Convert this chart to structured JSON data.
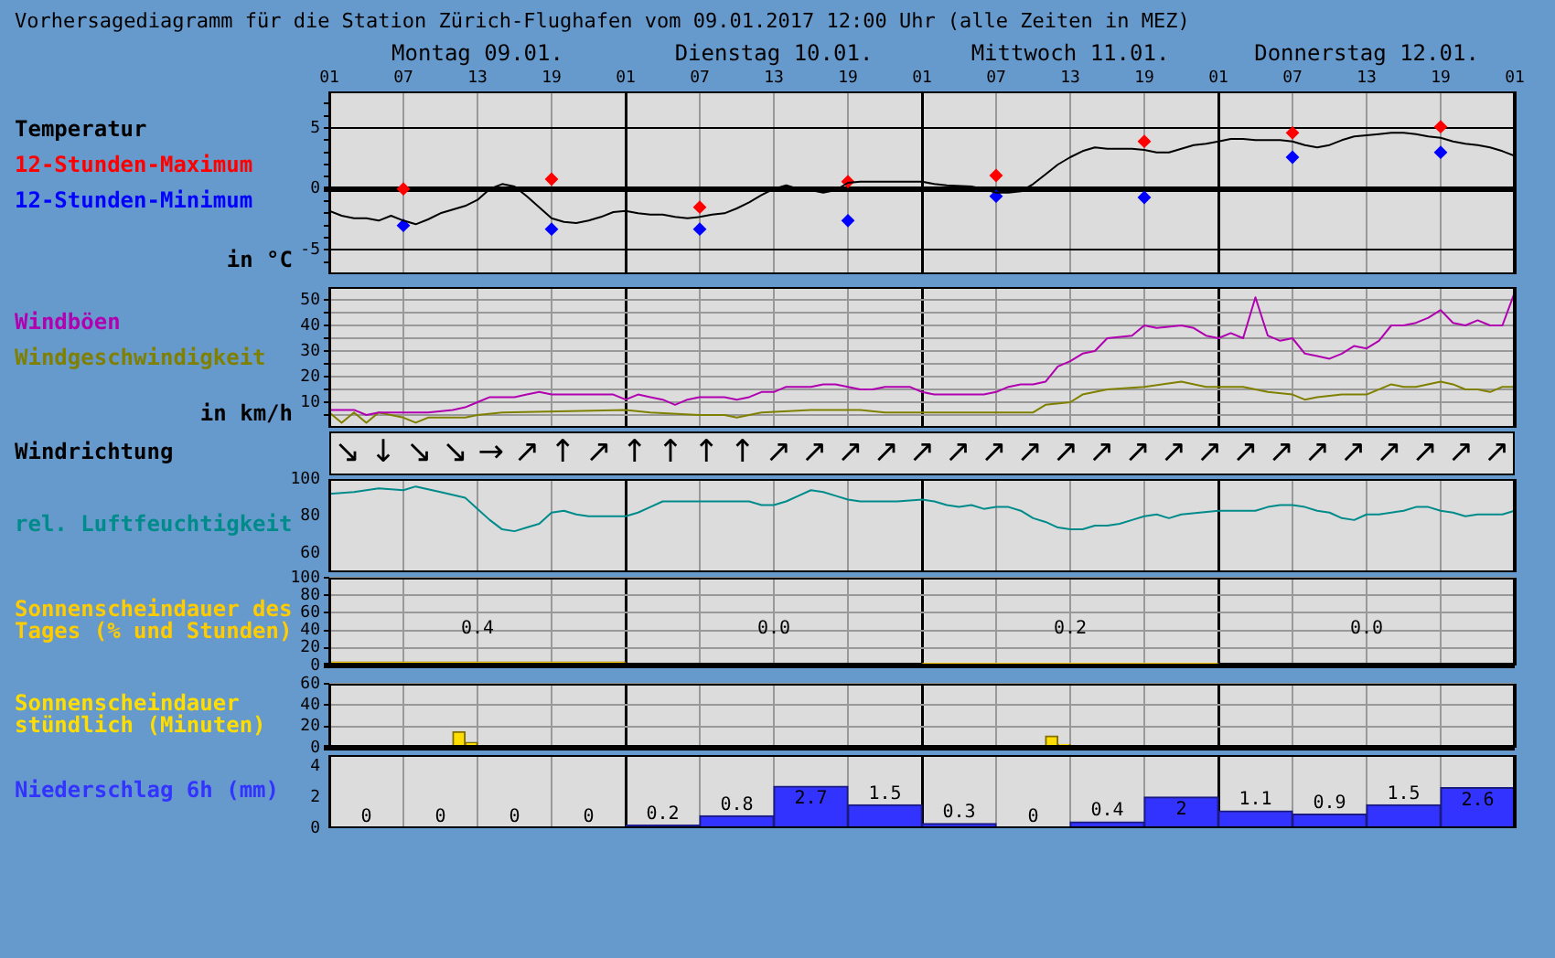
{
  "chart_data": [
    {
      "type": "line",
      "title": "Vorhersagediagramm für die Station Zürich-Flughafen vom 09.01.2017 12:00 Uhr (alle Zeiten in MEZ)",
      "ylabel": "in °C",
      "legend": "left",
      "grid": true,
      "xlim": [
        "2017-01-09T01:00",
        "2017-01-13T01:00"
      ],
      "xticks": [
        {
          "value": "2017-01-09T01:00",
          "label": "01"
        },
        {
          "value": "2017-01-09T07:00",
          "label": "07"
        },
        {
          "value": "2017-01-09T13:00",
          "label": "13"
        },
        {
          "value": "2017-01-09T19:00",
          "label": "19"
        },
        {
          "value": "2017-01-10T01:00",
          "label": "01"
        },
        {
          "value": "2017-01-10T07:00",
          "label": "07"
        },
        {
          "value": "2017-01-10T13:00",
          "label": "13"
        },
        {
          "value": "2017-01-10T19:00",
          "label": "19"
        },
        {
          "value": "2017-01-11T01:00",
          "label": "01"
        },
        {
          "value": "2017-01-11T07:00",
          "label": "07"
        },
        {
          "value": "2017-01-11T13:00",
          "label": "13"
        },
        {
          "value": "2017-01-11T19:00",
          "label": "19"
        },
        {
          "value": "2017-01-12T01:00",
          "label": "01"
        },
        {
          "value": "2017-01-12T07:00",
          "label": "07"
        },
        {
          "value": "2017-01-12T13:00",
          "label": "13"
        },
        {
          "value": "2017-01-12T19:00",
          "label": "19"
        },
        {
          "value": "2017-01-13T01:00",
          "label": "01"
        }
      ],
      "x2lim": [
        "2017-01-09T01:00",
        "2017-01-13T01:00"
      ],
      "x2ticks": [
        {
          "value": "2017-01-09T13:00",
          "label": "Montag 09.01."
        },
        {
          "value": "2017-01-10T13:00",
          "label": "Dienstag 10.01."
        },
        {
          "value": "2017-01-11T13:00",
          "label": "Mittwoch 11.01."
        },
        {
          "value": "2017-01-12T13:00",
          "label": "Donnerstag 12.01."
        }
      ],
      "ylim": [
        -7,
        8
      ],
      "yticks": [
        {
          "value": -6,
          "label": null
        },
        -5,
        {
          "value": -4,
          "label": null
        },
        {
          "value": -3,
          "label": null
        },
        {
          "value": -2,
          "label": null
        },
        {
          "value": -1,
          "label": null
        },
        0,
        {
          "value": 1,
          "label": null
        },
        {
          "value": 2,
          "label": null
        },
        {
          "value": 3,
          "label": null
        },
        {
          "value": 4,
          "label": null
        },
        5,
        {
          "value": 6,
          "label": null
        },
        {
          "value": 7,
          "label": null
        }
      ],
      "series": [
        {
          "name": "Temperatur",
          "type": "line",
          "color": "#000000",
          "marker": "none",
          "x": [
            "2017-01-09T01:00",
            "2017-01-09T02:00",
            "2017-01-09T03:00",
            "2017-01-09T04:00",
            "2017-01-09T05:00",
            "2017-01-09T06:00",
            "2017-01-09T07:00",
            "2017-01-09T08:00",
            "2017-01-09T09:00",
            "2017-01-09T10:00",
            "2017-01-09T11:00",
            "2017-01-09T12:00",
            "2017-01-09T13:00",
            "2017-01-09T14:00",
            "2017-01-09T15:00",
            "2017-01-09T16:00",
            "2017-01-09T17:00",
            "2017-01-09T18:00",
            "2017-01-09T19:00",
            "2017-01-09T20:00",
            "2017-01-09T21:00",
            "2017-01-09T22:00",
            "2017-01-09T23:00",
            "2017-01-10T00:00",
            "2017-01-10T01:00",
            "2017-01-10T02:00",
            "2017-01-10T03:00",
            "2017-01-10T04:00",
            "2017-01-10T05:00",
            "2017-01-10T06:00",
            "2017-01-10T07:00",
            "2017-01-10T08:00",
            "2017-01-10T09:00",
            "2017-01-10T10:00",
            "2017-01-10T11:00",
            "2017-01-10T12:00",
            "2017-01-10T13:00",
            "2017-01-10T14:00",
            "2017-01-10T15:00",
            "2017-01-10T16:00",
            "2017-01-10T17:00",
            "2017-01-10T18:00",
            "2017-01-10T19:00",
            "2017-01-10T20:00",
            "2017-01-10T22:00",
            "2017-01-11T00:00",
            "2017-01-11T01:00",
            "2017-01-11T02:00",
            "2017-01-11T03:00",
            "2017-01-11T05:00",
            "2017-01-11T06:00",
            "2017-01-11T07:00",
            "2017-01-11T08:00",
            "2017-01-11T09:00",
            "2017-01-11T10:00",
            "2017-01-11T11:00",
            "2017-01-11T12:00",
            "2017-01-11T13:00",
            "2017-01-11T14:00",
            "2017-01-11T15:00",
            "2017-01-11T16:00",
            "2017-01-11T18:00",
            "2017-01-11T19:00",
            "2017-01-11T20:00",
            "2017-01-11T21:00",
            "2017-01-11T22:00",
            "2017-01-11T23:00",
            "2017-01-12T00:00",
            "2017-01-12T01:00",
            "2017-01-12T02:00",
            "2017-01-12T03:00",
            "2017-01-12T04:00",
            "2017-01-12T06:00",
            "2017-01-12T07:00",
            "2017-01-12T08:00",
            "2017-01-12T09:00",
            "2017-01-12T10:00",
            "2017-01-12T11:00",
            "2017-01-12T12:00",
            "2017-01-12T13:00",
            "2017-01-12T14:00",
            "2017-01-12T15:00",
            "2017-01-12T16:00",
            "2017-01-12T17:00",
            "2017-01-12T18:00",
            "2017-01-12T19:00",
            "2017-01-12T20:00",
            "2017-01-12T21:00",
            "2017-01-12T22:00",
            "2017-01-12T23:00",
            "2017-01-13T00:00",
            "2017-01-13T01:00"
          ],
          "values": [
            -1.8,
            -2.2,
            -2.4,
            -2.4,
            -2.6,
            -2.2,
            -2.6,
            -2.9,
            -2.5,
            -2.0,
            -1.7,
            -1.4,
            -0.9,
            0,
            0.4,
            0.2,
            -0.6,
            -1.5,
            -2.4,
            -2.7,
            -2.8,
            -2.6,
            -2.3,
            -1.9,
            -1.8,
            -2.0,
            -2.1,
            -2.1,
            -2.3,
            -2.4,
            -2.3,
            -2.1,
            -2.0,
            -1.6,
            -1.1,
            -0.5,
            0,
            0.3,
            0,
            -0.1,
            -0.3,
            -0.1,
            0.5,
            0.6,
            0.6,
            0.6,
            0.6,
            0.4,
            0.3,
            0.2,
            0,
            -0.3,
            -0.3,
            -0.2,
            0.4,
            1.2,
            2.0,
            2.6,
            3.1,
            3.4,
            3.3,
            3.3,
            3.2,
            3.0,
            3.0,
            3.3,
            3.6,
            3.7,
            3.9,
            4.1,
            4.1,
            4.0,
            4.0,
            3.9,
            3.6,
            3.4,
            3.6,
            4.0,
            4.3,
            4.4,
            4.5,
            4.6,
            4.6,
            4.5,
            4.3,
            4.2,
            3.9,
            3.7,
            3.6,
            3.4,
            3.1,
            2.7
          ]
        },
        {
          "name": "12-Stunden-Maximum",
          "type": "scatter",
          "color": "#ff0000",
          "marker": "diamond",
          "x": [
            "2017-01-09T07:00",
            "2017-01-09T19:00",
            "2017-01-10T07:00",
            "2017-01-10T19:00",
            "2017-01-11T07:00",
            "2017-01-11T19:00",
            "2017-01-12T07:00",
            "2017-01-12T19:00"
          ],
          "values": [
            0,
            0.8,
            -1.5,
            0.6,
            1.1,
            3.9,
            4.6,
            5.1
          ]
        },
        {
          "name": "12-Stunden-Minimum",
          "type": "scatter",
          "color": "#0000ff",
          "marker": "diamond",
          "x": [
            "2017-01-09T07:00",
            "2017-01-09T19:00",
            "2017-01-10T07:00",
            "2017-01-10T19:00",
            "2017-01-11T07:00",
            "2017-01-11T19:00",
            "2017-01-12T07:00",
            "2017-01-12T19:00"
          ],
          "values": [
            -3.0,
            -3.3,
            -3.3,
            -2.6,
            -0.6,
            -0.7,
            2.6,
            3.0
          ]
        }
      ]
    },
    {
      "type": "line",
      "ylabel": "in km/h",
      "legend": "left",
      "grid": true,
      "tick_labels": "y",
      "xlim": [
        "2017-01-09T01:00",
        "2017-01-13T01:00"
      ],
      "xticks": [
        {
          "value": "2017-01-09T01:00",
          "label": null
        },
        {
          "value": "2017-01-09T07:00",
          "label": null
        },
        {
          "value": "2017-01-09T13:00",
          "label": null
        },
        {
          "value": "2017-01-09T19:00",
          "label": null
        },
        {
          "value": "2017-01-10T01:00",
          "label": null
        },
        {
          "value": "2017-01-10T07:00",
          "label": null
        },
        {
          "value": "2017-01-10T13:00",
          "label": null
        },
        {
          "value": "2017-01-10T19:00",
          "label": null
        },
        {
          "value": "2017-01-11T01:00",
          "label": null
        },
        {
          "value": "2017-01-11T07:00",
          "label": null
        },
        {
          "value": "2017-01-11T13:00",
          "label": null
        },
        {
          "value": "2017-01-11T19:00",
          "label": null
        },
        {
          "value": "2017-01-12T01:00",
          "label": null
        },
        {
          "value": "2017-01-12T07:00",
          "label": null
        },
        {
          "value": "2017-01-12T13:00",
          "label": null
        },
        {
          "value": "2017-01-12T19:00",
          "label": null
        },
        {
          "value": "2017-01-13T01:00",
          "label": null
        }
      ],
      "ylim": [
        0,
        55
      ],
      "yticks": [
        {
          "value": 5,
          "label": null
        },
        10,
        {
          "value": 15,
          "label": null
        },
        20,
        {
          "value": 25,
          "label": null
        },
        30,
        {
          "value": 35,
          "label": null
        },
        40,
        {
          "value": 45,
          "label": null
        },
        50
      ],
      "series": [
        {
          "name": "Windböen",
          "color": "#b000b0",
          "marker": "none",
          "x": [
            "2017-01-09T01:00",
            "2017-01-09T03:00",
            "2017-01-09T04:00",
            "2017-01-09T05:00",
            "2017-01-09T07:00",
            "2017-01-09T09:00",
            "2017-01-09T11:00",
            "2017-01-09T12:00",
            "2017-01-09T13:00",
            "2017-01-09T14:00",
            "2017-01-09T15:00",
            "2017-01-09T16:00",
            "2017-01-09T17:00",
            "2017-01-09T18:00",
            "2017-01-09T19:00",
            "2017-01-09T20:00",
            "2017-01-09T22:00",
            "2017-01-09T23:00",
            "2017-01-10T00:00",
            "2017-01-10T01:00",
            "2017-01-10T02:00",
            "2017-01-10T03:00",
            "2017-01-10T04:00",
            "2017-01-10T05:00",
            "2017-01-10T06:00",
            "2017-01-10T07:00",
            "2017-01-10T09:00",
            "2017-01-10T10:00",
            "2017-01-10T11:00",
            "2017-01-10T12:00",
            "2017-01-10T13:00",
            "2017-01-10T14:00",
            "2017-01-10T15:00",
            "2017-01-10T16:00",
            "2017-01-10T17:00",
            "2017-01-10T18:00",
            "2017-01-10T19:00",
            "2017-01-10T20:00",
            "2017-01-10T21:00",
            "2017-01-10T22:00",
            "2017-01-10T23:00",
            "2017-01-11T00:00",
            "2017-01-11T01:00",
            "2017-01-11T02:00",
            "2017-01-11T04:00",
            "2017-01-11T06:00",
            "2017-01-11T07:00",
            "2017-01-11T08:00",
            "2017-01-11T09:00",
            "2017-01-11T10:00",
            "2017-01-11T11:00",
            "2017-01-11T12:00",
            "2017-01-11T13:00",
            "2017-01-11T14:00",
            "2017-01-11T15:00",
            "2017-01-11T16:00",
            "2017-01-11T18:00",
            "2017-01-11T19:00",
            "2017-01-11T20:00",
            "2017-01-11T22:00",
            "2017-01-11T23:00",
            "2017-01-12T00:00",
            "2017-01-12T01:00",
            "2017-01-12T02:00",
            "2017-01-12T03:00",
            "2017-01-12T04:00",
            "2017-01-12T05:00",
            "2017-01-12T06:00",
            "2017-01-12T07:00",
            "2017-01-12T08:00",
            "2017-01-12T09:00",
            "2017-01-12T10:00",
            "2017-01-12T11:00",
            "2017-01-12T12:00",
            "2017-01-12T13:00",
            "2017-01-12T14:00",
            "2017-01-12T15:00",
            "2017-01-12T16:00",
            "2017-01-12T17:00",
            "2017-01-12T18:00",
            "2017-01-12T19:00",
            "2017-01-12T20:00",
            "2017-01-12T21:00",
            "2017-01-12T22:00",
            "2017-01-12T23:00",
            "2017-01-13T00:00",
            "2017-01-13T01:00"
          ],
          "values": [
            7,
            7,
            5,
            6,
            6,
            6,
            7,
            8,
            10,
            12,
            12,
            12,
            13,
            14,
            13,
            13,
            13,
            13,
            13,
            11,
            13,
            12,
            11,
            9,
            11,
            12,
            12,
            11,
            12,
            14,
            14,
            16,
            16,
            16,
            17,
            17,
            16,
            15,
            15,
            16,
            16,
            16,
            14,
            13,
            13,
            13,
            14,
            16,
            17,
            17,
            18,
            24,
            26,
            29,
            30,
            35,
            36,
            40,
            39,
            40,
            39,
            36,
            35,
            37,
            35,
            51,
            36,
            34,
            35,
            29,
            28,
            27,
            29,
            32,
            31,
            34,
            40,
            40,
            41,
            43,
            46,
            41,
            40,
            42,
            40,
            40,
            53
          ]
        },
        {
          "name": "Windgeschwindigkeit",
          "color": "#808000",
          "marker": "none",
          "x": [
            "2017-01-09T01:00",
            "2017-01-09T02:00",
            "2017-01-09T03:00",
            "2017-01-09T04:00",
            "2017-01-09T05:00",
            "2017-01-09T06:00",
            "2017-01-09T07:00",
            "2017-01-09T08:00",
            "2017-01-09T09:00",
            "2017-01-09T12:00",
            "2017-01-09T13:00",
            "2017-01-09T15:00",
            "2017-01-10T01:00",
            "2017-01-10T03:00",
            "2017-01-10T07:00",
            "2017-01-10T09:00",
            "2017-01-10T10:00",
            "2017-01-10T12:00",
            "2017-01-10T16:00",
            "2017-01-10T20:00",
            "2017-01-10T22:00",
            "2017-01-11T01:00",
            "2017-01-11T04:00",
            "2017-01-11T10:00",
            "2017-01-11T11:00",
            "2017-01-11T13:00",
            "2017-01-11T14:00",
            "2017-01-11T16:00",
            "2017-01-11T19:00",
            "2017-01-11T22:00",
            "2017-01-12T00:00",
            "2017-01-12T01:00",
            "2017-01-12T03:00",
            "2017-01-12T05:00",
            "2017-01-12T07:00",
            "2017-01-12T08:00",
            "2017-01-12T09:00",
            "2017-01-12T11:00",
            "2017-01-12T13:00",
            "2017-01-12T15:00",
            "2017-01-12T16:00",
            "2017-01-12T17:00",
            "2017-01-12T19:00",
            "2017-01-12T20:00",
            "2017-01-12T21:00",
            "2017-01-12T22:00",
            "2017-01-12T23:00",
            "2017-01-13T00:00",
            "2017-01-13T01:00"
          ],
          "values": [
            6,
            2,
            6,
            2,
            6,
            5,
            4,
            2,
            4,
            4,
            5,
            6,
            7,
            6,
            5,
            5,
            4,
            6,
            7,
            7,
            6,
            6,
            6,
            6,
            9,
            10,
            13,
            15,
            16,
            18,
            16,
            16,
            16,
            14,
            13,
            11,
            12,
            13,
            13,
            17,
            16,
            16,
            18,
            17,
            15,
            15,
            14,
            16,
            16
          ]
        }
      ]
    },
    {
      "type": "other",
      "title": "Windrichtung",
      "annotations": [
        "↘",
        "↓",
        "↘",
        "↘",
        "→",
        "↗",
        "↑",
        "↗",
        "↑",
        "↑",
        "↑",
        "↑",
        "↗",
        "↗",
        "↗",
        "↗",
        "↗",
        "↗",
        "↗",
        "↗",
        "↗",
        "↗",
        "↗",
        "↗",
        "↗",
        "↗",
        "↗",
        "↗",
        "↗",
        "↗",
        "↗",
        "↗",
        "↗"
      ]
    },
    {
      "type": "line",
      "legend": "left",
      "grid": "x",
      "tick_labels": "y",
      "xlim": [
        "2017-01-09T01:00",
        "2017-01-13T01:00"
      ],
      "xticks": [
        {
          "value": "2017-01-09T01:00",
          "label": null
        },
        {
          "value": "2017-01-09T07:00",
          "label": null
        },
        {
          "value": "2017-01-09T13:00",
          "label": null
        },
        {
          "value": "2017-01-09T19:00",
          "label": null
        },
        {
          "value": "2017-01-10T01:00",
          "label": null
        },
        {
          "value": "2017-01-10T07:00",
          "label": null
        },
        {
          "value": "2017-01-10T13:00",
          "label": null
        },
        {
          "value": "2017-01-10T19:00",
          "label": null
        },
        {
          "value": "2017-01-11T01:00",
          "label": null
        },
        {
          "value": "2017-01-11T07:00",
          "label": null
        },
        {
          "value": "2017-01-11T13:00",
          "label": null
        },
        {
          "value": "2017-01-11T19:00",
          "label": null
        },
        {
          "value": "2017-01-12T01:00",
          "label": null
        },
        {
          "value": "2017-01-12T07:00",
          "label": null
        },
        {
          "value": "2017-01-12T13:00",
          "label": null
        },
        {
          "value": "2017-01-12T19:00",
          "label": null
        },
        {
          "value": "2017-01-13T01:00",
          "label": null
        }
      ],
      "ylim": [
        50,
        100
      ],
      "yticks": [
        60,
        80,
        100
      ],
      "series": [
        {
          "name": "rel. Luftfeuchtigkeit",
          "color": "#008b8b",
          "marker": "none",
          "x": [
            "2017-01-09T01:00",
            "2017-01-09T03:00",
            "2017-01-09T05:00",
            "2017-01-09T07:00",
            "2017-01-09T08:00",
            "2017-01-09T10:00",
            "2017-01-09T12:00",
            "2017-01-09T13:00",
            "2017-01-09T14:00",
            "2017-01-09T15:00",
            "2017-01-09T16:00",
            "2017-01-09T17:00",
            "2017-01-09T18:00",
            "2017-01-09T19:00",
            "2017-01-09T20:00",
            "2017-01-09T21:00",
            "2017-01-09T22:00",
            "2017-01-10T01:00",
            "2017-01-10T02:00",
            "2017-01-10T03:00",
            "2017-01-10T04:00",
            "2017-01-10T07:00",
            "2017-01-10T10:00",
            "2017-01-10T11:00",
            "2017-01-10T12:00",
            "2017-01-10T13:00",
            "2017-01-10T14:00",
            "2017-01-10T15:00",
            "2017-01-10T16:00",
            "2017-01-10T17:00",
            "2017-01-10T18:00",
            "2017-01-10T19:00",
            "2017-01-10T20:00",
            "2017-01-10T22:00",
            "2017-01-10T23:00",
            "2017-01-11T01:00",
            "2017-01-11T02:00",
            "2017-01-11T03:00",
            "2017-01-11T04:00",
            "2017-01-11T05:00",
            "2017-01-11T06:00",
            "2017-01-11T07:00",
            "2017-01-11T08:00",
            "2017-01-11T09:00",
            "2017-01-11T10:00",
            "2017-01-11T11:00",
            "2017-01-11T12:00",
            "2017-01-11T13:00",
            "2017-01-11T14:00",
            "2017-01-11T15:00",
            "2017-01-11T16:00",
            "2017-01-11T17:00",
            "2017-01-11T18:00",
            "2017-01-11T19:00",
            "2017-01-11T20:00",
            "2017-01-11T21:00",
            "2017-01-11T22:00",
            "2017-01-12T01:00",
            "2017-01-12T04:00",
            "2017-01-12T05:00",
            "2017-01-12T06:00",
            "2017-01-12T07:00",
            "2017-01-12T08:00",
            "2017-01-12T09:00",
            "2017-01-12T10:00",
            "2017-01-12T11:00",
            "2017-01-12T12:00",
            "2017-01-12T13:00",
            "2017-01-12T14:00",
            "2017-01-12T16:00",
            "2017-01-12T17:00",
            "2017-01-12T18:00",
            "2017-01-12T19:00",
            "2017-01-12T20:00",
            "2017-01-12T21:00",
            "2017-01-12T22:00",
            "2017-01-13T00:00",
            "2017-01-13T01:00"
          ],
          "values": [
            92,
            93,
            95,
            94,
            96,
            93,
            90,
            84,
            78,
            73,
            72,
            74,
            76,
            82,
            83,
            81,
            80,
            80,
            82,
            85,
            88,
            88,
            88,
            88,
            86,
            86,
            88,
            91,
            94,
            93,
            91,
            89,
            88,
            88,
            88,
            89,
            88,
            86,
            85,
            86,
            84,
            85,
            85,
            83,
            79,
            77,
            74,
            73,
            73,
            75,
            75,
            76,
            78,
            80,
            81,
            79,
            81,
            83,
            83,
            85,
            86,
            86,
            85,
            83,
            82,
            79,
            78,
            81,
            81,
            83,
            85,
            85,
            83,
            82,
            80,
            81,
            81,
            83
          ]
        }
      ]
    },
    {
      "type": "bar",
      "legend": "left",
      "grid": true,
      "tick_labels": "y",
      "xlim": [
        "2017-01-09T01:00",
        "2017-01-13T01:00"
      ],
      "xticks": [
        {
          "value": "2017-01-09T01:00",
          "label": null
        },
        {
          "value": "2017-01-09T07:00",
          "label": null
        },
        {
          "value": "2017-01-09T13:00",
          "label": null
        },
        {
          "value": "2017-01-09T19:00",
          "label": null
        },
        {
          "value": "2017-01-10T01:00",
          "label": null
        },
        {
          "value": "2017-01-10T07:00",
          "label": null
        },
        {
          "value": "2017-01-10T13:00",
          "label": null
        },
        {
          "value": "2017-01-10T19:00",
          "label": null
        },
        {
          "value": "2017-01-11T01:00",
          "label": null
        },
        {
          "value": "2017-01-11T07:00",
          "label": null
        },
        {
          "value": "2017-01-11T13:00",
          "label": null
        },
        {
          "value": "2017-01-11T19:00",
          "label": null
        },
        {
          "value": "2017-01-12T01:00",
          "label": null
        },
        {
          "value": "2017-01-12T07:00",
          "label": null
        },
        {
          "value": "2017-01-12T13:00",
          "label": null
        },
        {
          "value": "2017-01-12T19:00",
          "label": null
        },
        {
          "value": "2017-01-13T01:00",
          "label": null
        }
      ],
      "ylim": [
        0,
        100
      ],
      "yticks": [
        0,
        20,
        40,
        60,
        80,
        100
      ],
      "annotations": [
        "0.4",
        "0.0",
        "0.2",
        "0.0"
      ],
      "series": [
        {
          "name": "Sonnenscheindauer des Tages (% und Stunden)",
          "color": "#ffcc00",
          "x": [
            "2017-01-09T13:00",
            "2017-01-10T13:00",
            "2017-01-11T13:00",
            "2017-01-12T13:00"
          ],
          "values": [
            4,
            0,
            2,
            0
          ]
        }
      ]
    },
    {
      "type": "bar",
      "legend": "left",
      "grid": true,
      "tick_labels": "y",
      "xlim": [
        "2017-01-09T01:00",
        "2017-01-13T01:00"
      ],
      "xticks": [
        {
          "value": "2017-01-09T01:00",
          "label": null
        },
        {
          "value": "2017-01-09T07:00",
          "label": null
        },
        {
          "value": "2017-01-09T13:00",
          "label": null
        },
        {
          "value": "2017-01-09T19:00",
          "label": null
        },
        {
          "value": "2017-01-10T01:00",
          "label": null
        },
        {
          "value": "2017-01-10T07:00",
          "label": null
        },
        {
          "value": "2017-01-10T13:00",
          "label": null
        },
        {
          "value": "2017-01-10T19:00",
          "label": null
        },
        {
          "value": "2017-01-11T01:00",
          "label": null
        },
        {
          "value": "2017-01-11T07:00",
          "label": null
        },
        {
          "value": "2017-01-11T13:00",
          "label": null
        },
        {
          "value": "2017-01-11T19:00",
          "label": null
        },
        {
          "value": "2017-01-12T01:00",
          "label": null
        },
        {
          "value": "2017-01-12T07:00",
          "label": null
        },
        {
          "value": "2017-01-12T13:00",
          "label": null
        },
        {
          "value": "2017-01-12T19:00",
          "label": null
        },
        {
          "value": "2017-01-13T01:00",
          "label": null
        }
      ],
      "ylim": [
        0,
        60
      ],
      "yticks": [
        0,
        20,
        40,
        60
      ],
      "series": [
        {
          "name": "Sonnenscheindauer stündlich (Minuten)",
          "color": "#ffdd00",
          "x": [
            "2017-01-09T01:30",
            "2017-01-09T02:30",
            "2017-01-09T03:30",
            "2017-01-09T04:30",
            "2017-01-09T05:30",
            "2017-01-09T06:30",
            "2017-01-09T07:30",
            "2017-01-09T08:30",
            "2017-01-09T09:30",
            "2017-01-09T10:30",
            "2017-01-09T11:30",
            "2017-01-09T12:30",
            "2017-01-09T13:30",
            "2017-01-09T14:30",
            "2017-01-09T15:30",
            "2017-01-09T16:30",
            "2017-01-09T17:30",
            "2017-01-09T18:30",
            "2017-01-09T19:30",
            "2017-01-09T20:30",
            "2017-01-09T21:30",
            "2017-01-09T22:30",
            "2017-01-09T23:30",
            "2017-01-10T00:30",
            "2017-01-10T01:30",
            "2017-01-10T02:30",
            "2017-01-10T03:30",
            "2017-01-10T04:30",
            "2017-01-10T05:30",
            "2017-01-10T06:30",
            "2017-01-10T07:30",
            "2017-01-10T08:30",
            "2017-01-10T09:30",
            "2017-01-10T10:30",
            "2017-01-10T11:30",
            "2017-01-10T12:30",
            "2017-01-10T13:30",
            "2017-01-10T14:30",
            "2017-01-10T15:30",
            "2017-01-10T16:30",
            "2017-01-10T17:30",
            "2017-01-10T18:30",
            "2017-01-10T19:30",
            "2017-01-10T20:30",
            "2017-01-10T21:30",
            "2017-01-10T22:30",
            "2017-01-10T23:30",
            "2017-01-11T00:30",
            "2017-01-11T01:30",
            "2017-01-11T02:30",
            "2017-01-11T03:30",
            "2017-01-11T04:30",
            "2017-01-11T05:30",
            "2017-01-11T06:30",
            "2017-01-11T07:30",
            "2017-01-11T08:30",
            "2017-01-11T09:30",
            "2017-01-11T10:30",
            "2017-01-11T11:30",
            "2017-01-11T12:30",
            "2017-01-11T13:30",
            "2017-01-11T14:30",
            "2017-01-11T15:30",
            "2017-01-11T16:30",
            "2017-01-11T17:30",
            "2017-01-11T18:30",
            "2017-01-11T19:30",
            "2017-01-11T20:30",
            "2017-01-11T21:30",
            "2017-01-11T22:30",
            "2017-01-11T23:30",
            "2017-01-12T00:30",
            "2017-01-12T01:30",
            "2017-01-12T02:30",
            "2017-01-12T03:30",
            "2017-01-12T04:30",
            "2017-01-12T05:30",
            "2017-01-12T06:30",
            "2017-01-12T07:30",
            "2017-01-12T08:30",
            "2017-01-12T09:30",
            "2017-01-12T10:30",
            "2017-01-12T11:30",
            "2017-01-12T12:30",
            "2017-01-12T13:30",
            "2017-01-12T14:30",
            "2017-01-12T15:30",
            "2017-01-12T16:30",
            "2017-01-12T17:30",
            "2017-01-12T18:30",
            "2017-01-12T19:30",
            "2017-01-12T20:30",
            "2017-01-12T21:30",
            "2017-01-12T22:30",
            "2017-01-12T23:30",
            "2017-01-13T00:30"
          ],
          "values": [
            0,
            0,
            0,
            0,
            0,
            0,
            0,
            0,
            0,
            0,
            15,
            5,
            0,
            0,
            0,
            0,
            0,
            0,
            0,
            0,
            0,
            0,
            0,
            0,
            0,
            0,
            0,
            0,
            0,
            0,
            0,
            0,
            0,
            0,
            0,
            0,
            0,
            0,
            0,
            0,
            0,
            0,
            0,
            0,
            0,
            0,
            0,
            0,
            0,
            0,
            0,
            0,
            0,
            0,
            0,
            0,
            0,
            0,
            11,
            3,
            0,
            0,
            0,
            0,
            0,
            0,
            0,
            0,
            0,
            0,
            0,
            0,
            0,
            0,
            0,
            0,
            0,
            0,
            0,
            0,
            0,
            0,
            0,
            0,
            0,
            0,
            0,
            0,
            0,
            0,
            0,
            0,
            0,
            0,
            0,
            0
          ]
        }
      ]
    },
    {
      "type": "bar",
      "legend": "left",
      "grid": "x",
      "tick_labels": "y",
      "data_labels": true,
      "xlim": [
        "2017-01-09T01:00",
        "2017-01-13T01:00"
      ],
      "xticks": [
        {
          "value": "2017-01-09T01:00",
          "label": null
        },
        {
          "value": "2017-01-09T07:00",
          "label": null
        },
        {
          "value": "2017-01-09T13:00",
          "label": null
        },
        {
          "value": "2017-01-09T19:00",
          "label": null
        },
        {
          "value": "2017-01-10T01:00",
          "label": null
        },
        {
          "value": "2017-01-10T07:00",
          "label": null
        },
        {
          "value": "2017-01-10T13:00",
          "label": null
        },
        {
          "value": "2017-01-10T19:00",
          "label": null
        },
        {
          "value": "2017-01-11T01:00",
          "label": null
        },
        {
          "value": "2017-01-11T07:00",
          "label": null
        },
        {
          "value": "2017-01-11T13:00",
          "label": null
        },
        {
          "value": "2017-01-11T19:00",
          "label": null
        },
        {
          "value": "2017-01-12T01:00",
          "label": null
        },
        {
          "value": "2017-01-12T07:00",
          "label": null
        },
        {
          "value": "2017-01-12T13:00",
          "label": null
        },
        {
          "value": "2017-01-12T19:00",
          "label": null
        },
        {
          "value": "2017-01-13T01:00",
          "label": null
        }
      ],
      "ylim": [
        0,
        4.7
      ],
      "yticks": [
        0,
        2,
        4
      ],
      "series": [
        {
          "name": "Niederschlag 6h (mm)",
          "color": "#3333ff",
          "x": [
            "2017-01-09T04:00",
            "2017-01-09T10:00",
            "2017-01-09T16:00",
            "2017-01-09T22:00",
            "2017-01-10T04:00",
            "2017-01-10T10:00",
            "2017-01-10T16:00",
            "2017-01-10T22:00",
            "2017-01-11T04:00",
            "2017-01-11T10:00",
            "2017-01-11T16:00",
            "2017-01-11T22:00",
            "2017-01-12T04:00",
            "2017-01-12T10:00",
            "2017-01-12T16:00",
            "2017-01-12T22:00"
          ],
          "values": [
            0,
            0,
            0,
            0,
            0.2,
            0.8,
            2.7,
            1.5,
            0.3,
            0,
            0.4,
            2,
            1.1,
            0.9,
            1.5,
            2.6
          ]
        }
      ]
    }
  ]
}
